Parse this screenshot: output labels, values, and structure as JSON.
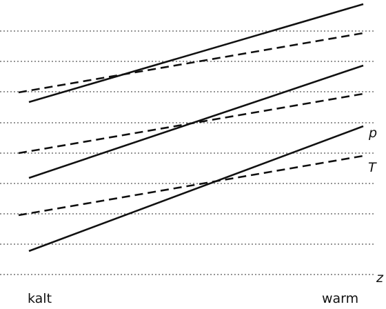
{
  "curve_labels": {
    "pressure": "p",
    "temperature": "T"
  },
  "axis": {
    "label": "z",
    "left": "kalt",
    "right": "warm"
  }
}
